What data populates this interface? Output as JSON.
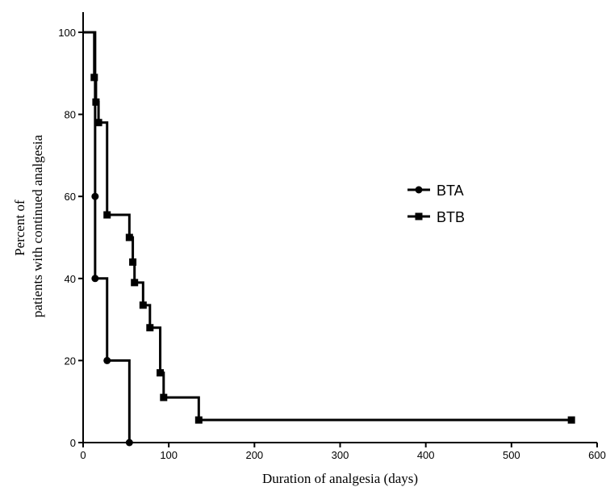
{
  "chart_data": {
    "type": "line",
    "title": "",
    "xlabel": "Duration of analgesia (days)",
    "ylabel_lines": [
      "Percent of",
      "patients with continued analgesia"
    ],
    "xlim": [
      0,
      600
    ],
    "ylim": [
      0,
      100
    ],
    "xticks": [
      0,
      100,
      200,
      300,
      400,
      500,
      600
    ],
    "yticks": [
      0,
      20,
      40,
      60,
      80,
      100
    ],
    "grid": false,
    "legend_position": "right",
    "series": [
      {
        "name": "BTA",
        "marker": "circle",
        "step": true,
        "points": [
          [
            0,
            100
          ],
          [
            14,
            60
          ],
          [
            14,
            40
          ],
          [
            28,
            20
          ],
          [
            54,
            0
          ]
        ]
      },
      {
        "name": "BTB",
        "marker": "square",
        "step": true,
        "points": [
          [
            0,
            100
          ],
          [
            13,
            89
          ],
          [
            15,
            83
          ],
          [
            18,
            78
          ],
          [
            28,
            55.5
          ],
          [
            54,
            50
          ],
          [
            58,
            44
          ],
          [
            60,
            39
          ],
          [
            70,
            33.5
          ],
          [
            78,
            28
          ],
          [
            90,
            17
          ],
          [
            94,
            11
          ],
          [
            135,
            5.5
          ],
          [
            570,
            5.5
          ]
        ]
      }
    ]
  }
}
